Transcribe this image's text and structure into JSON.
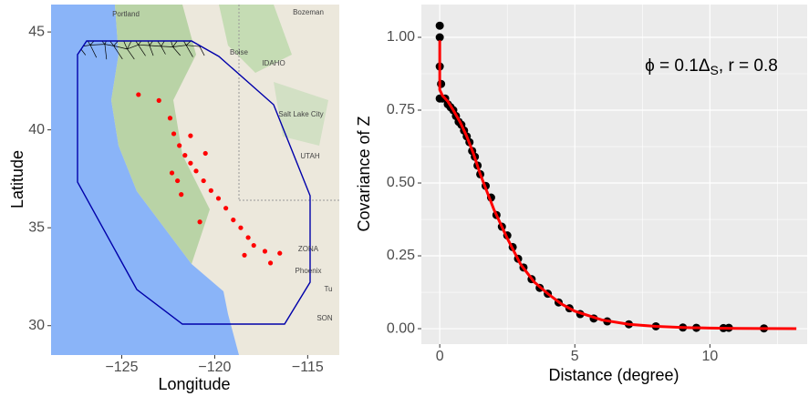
{
  "chart_data": [
    {
      "type": "map",
      "xlabel": "Longitude",
      "ylabel": "Latitude",
      "xlim": [
        -128.8,
        -113.3
      ],
      "ylim": [
        28.5,
        46.4
      ],
      "xticks": [
        {
          "value": -125,
          "label": "−125"
        },
        {
          "value": -120,
          "label": "−120"
        },
        {
          "value": -115,
          "label": "−115"
        }
      ],
      "yticks": [
        30,
        35,
        40,
        45
      ],
      "map_labels": [
        "Portland",
        "Bozeman",
        "Boise",
        "IDAHO",
        "Salt Lake City",
        "UTAH",
        "ZONA",
        "Phoenix",
        "Tu",
        "SON"
      ],
      "mesh_color": "#000000",
      "boundary_color": "#0000aa",
      "series": [
        {
          "color": "#ff0000",
          "x": [
            -124.1,
            -123,
            -122.4,
            -122.2,
            -121.9,
            -121.6,
            -121.3,
            -121,
            -120.6,
            -120.2,
            -119.8,
            -119.4,
            -119,
            -118.6,
            -118.2,
            -117.9,
            -117.3,
            -117,
            -122.3,
            -122,
            -121.8,
            -120.8,
            -118.4,
            -116.5,
            -121.3,
            -120.5
          ],
          "values": [
            41.8,
            41.5,
            40.6,
            39.8,
            39.2,
            38.7,
            38.3,
            37.9,
            37.4,
            36.9,
            36.5,
            36,
            35.4,
            35,
            34.5,
            34.1,
            33.8,
            33.2,
            37.8,
            37.4,
            36.7,
            35.3,
            33.6,
            33.7,
            39.7,
            38.8
          ]
        }
      ]
    },
    {
      "type": "scatter-line",
      "xlabel": "Distance (degree)",
      "ylabel": "Covariance of Z",
      "annotation": {
        "main": "ϕ = 0.1Δ",
        "sub": "S",
        "tail": ", r = 0.8"
      },
      "xlim": [
        -0.68,
        13.6
      ],
      "ylim": [
        -0.053,
        1.1125
      ],
      "xticks": [
        0,
        5,
        10
      ],
      "yticks": [
        {
          "value": 0,
          "label": "0.00"
        },
        {
          "value": 0.25,
          "label": "0.25"
        },
        {
          "value": 0.5,
          "label": "0.50"
        },
        {
          "value": 0.75,
          "label": "0.75"
        },
        {
          "value": 1,
          "label": "1.00"
        }
      ],
      "grid": true,
      "series": [
        {
          "color": "#000000",
          "style": "points",
          "x": [
            0,
            0,
            0,
            0,
            0.05,
            0.1,
            0.2,
            0.3,
            0.4,
            0.5,
            0.6,
            0.7,
            0.8,
            0.9,
            1,
            1.1,
            1.2,
            1.3,
            1.4,
            1.5,
            1.7,
            1.9,
            2.1,
            2.3,
            2.5,
            2.7,
            2.9,
            3.1,
            3.4,
            3.7,
            4,
            4.4,
            4.8,
            5.2,
            5.7,
            6.2,
            7,
            8,
            9,
            9.5,
            10.5,
            10.7,
            12
          ],
          "values": [
            1.04,
            1.0,
            0.9,
            0.79,
            0.84,
            0.79,
            0.79,
            0.77,
            0.76,
            0.75,
            0.73,
            0.71,
            0.7,
            0.68,
            0.66,
            0.64,
            0.61,
            0.59,
            0.56,
            0.53,
            0.49,
            0.45,
            0.39,
            0.35,
            0.32,
            0.28,
            0.24,
            0.21,
            0.17,
            0.14,
            0.12,
            0.09,
            0.07,
            0.05,
            0.035,
            0.025,
            0.015,
            0.008,
            0.004,
            0.003,
            0.002,
            0.003,
            0.001
          ]
        },
        {
          "color": "#ff0000",
          "style": "line",
          "x": [
            0,
            0,
            0.1,
            0.3,
            0.5,
            0.75,
            1,
            1.25,
            1.5,
            1.75,
            2,
            2.5,
            3,
            3.5,
            4,
            4.5,
            5,
            6,
            7,
            8,
            9,
            10,
            11,
            12,
            13.2
          ],
          "values": [
            0.99,
            0.82,
            0.8,
            0.78,
            0.75,
            0.71,
            0.66,
            0.6,
            0.53,
            0.47,
            0.41,
            0.31,
            0.22,
            0.16,
            0.12,
            0.085,
            0.06,
            0.03,
            0.015,
            0.008,
            0.004,
            0.002,
            0.001,
            0.0005,
            0
          ]
        }
      ]
    }
  ]
}
